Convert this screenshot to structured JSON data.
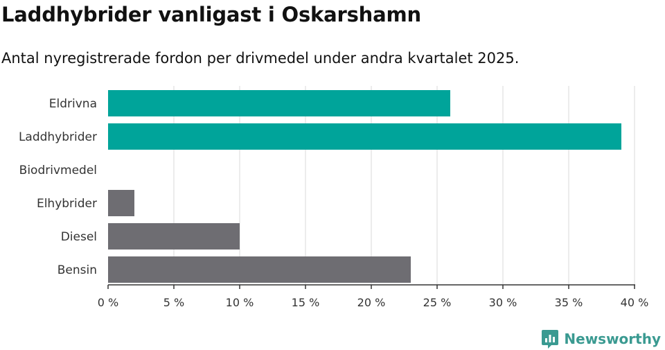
{
  "title": "Laddhybrider vanligast i Oskarshamn",
  "subtitle": "Antal nyregistrerade fordon per drivmedel under andra kvartalet 2025.",
  "brand": {
    "name": "Newsworthy",
    "icon": "newsworthy-logo-icon"
  },
  "colors": {
    "highlight": "#00a49a",
    "default": "#6e6d72",
    "grid": "#d9d9d9",
    "axis": "#333333"
  },
  "chart_data": {
    "type": "bar",
    "orientation": "horizontal",
    "categories": [
      "Eldrivna",
      "Laddhybrider",
      "Biodrivmedel",
      "Elhybrider",
      "Diesel",
      "Bensin"
    ],
    "values": [
      26,
      39,
      0,
      2,
      10,
      23
    ],
    "highlight": [
      true,
      true,
      false,
      false,
      false,
      false
    ],
    "xlim": [
      0,
      40
    ],
    "xticks": [
      0,
      5,
      10,
      15,
      20,
      25,
      30,
      35,
      40
    ],
    "tick_labels": [
      "0 %",
      "5 %",
      "10 %",
      "15 %",
      "20 %",
      "25 %",
      "30 %",
      "35 %",
      "40 %"
    ],
    "grid": true,
    "legend": "none"
  }
}
